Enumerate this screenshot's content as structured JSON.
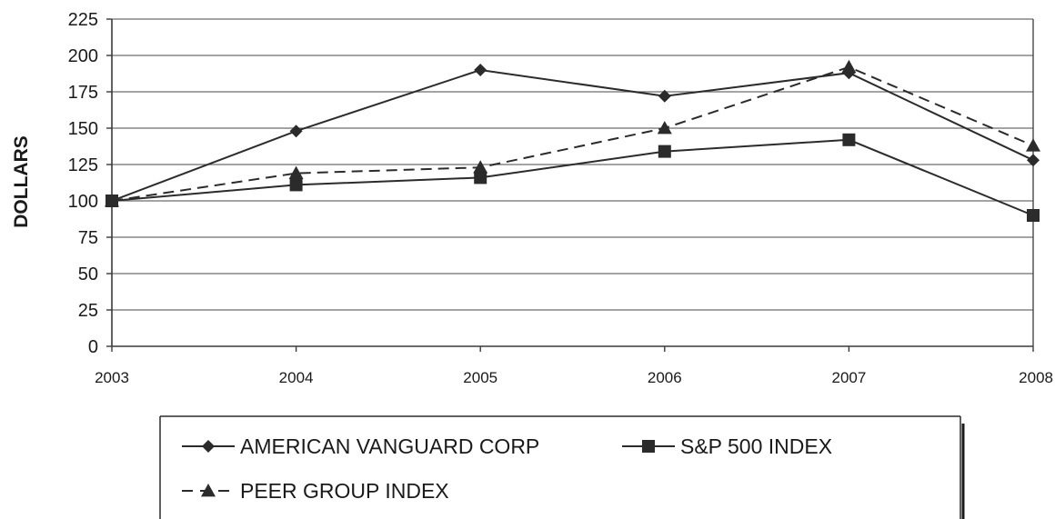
{
  "chart_data": {
    "type": "line",
    "title": "",
    "xlabel": "",
    "ylabel": "DOLLARS",
    "categories": [
      "2003",
      "2004",
      "2005",
      "2006",
      "2007",
      "2008"
    ],
    "yticks": [
      "0",
      "25",
      "50",
      "75",
      "100",
      "125",
      "150",
      "175",
      "200",
      "225"
    ],
    "ylim": [
      0,
      225
    ],
    "grid": "horizontal",
    "legend_position": "bottom",
    "series": [
      {
        "name": "AMERICAN VANGUARD CORP",
        "marker": "diamond",
        "style": "solid",
        "values": [
          100,
          148,
          190,
          172,
          188,
          128
        ]
      },
      {
        "name": "S&P 500 INDEX",
        "marker": "square",
        "style": "solid",
        "values": [
          100,
          111,
          116,
          134,
          142,
          90
        ]
      },
      {
        "name": "PEER GROUP INDEX",
        "marker": "triangle",
        "style": "dashed",
        "values": [
          100,
          119,
          123,
          150,
          192,
          138
        ]
      }
    ],
    "colors": {
      "line": "#2b2b2b",
      "grid": "#6e6e6e",
      "axis": "#3a3a3a"
    }
  }
}
